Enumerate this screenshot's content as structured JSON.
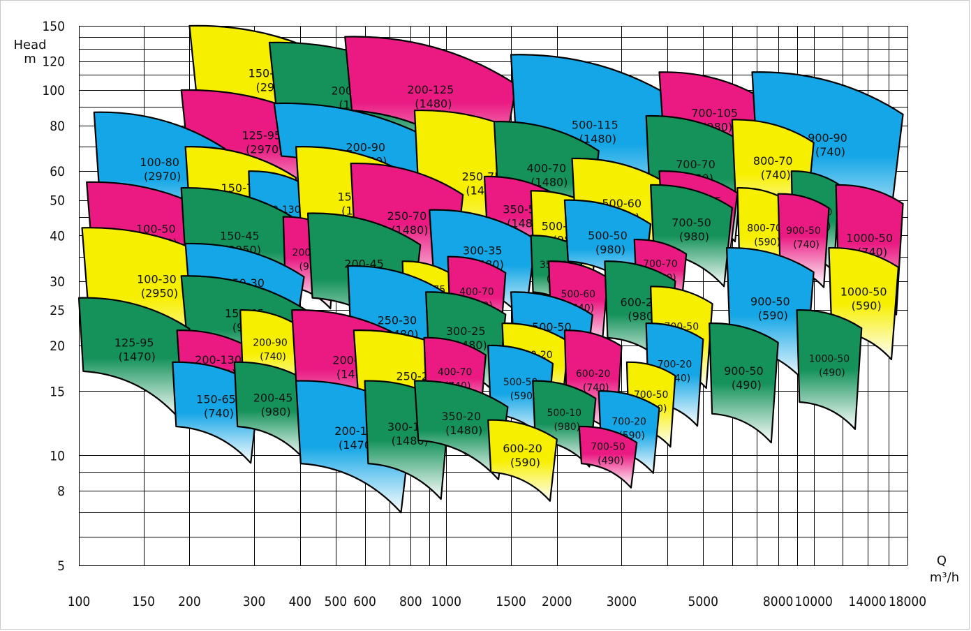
{
  "chart_data": {
    "type": "area",
    "title": "",
    "xlabel_top": "Q",
    "xlabel_unit": "m³/h",
    "ylabel_top": "Head",
    "ylabel_unit": "m",
    "x_scale": "log",
    "y_scale": "log",
    "xlim": [
      100,
      18000
    ],
    "ylim": [
      5,
      150
    ],
    "grid": true,
    "x_ticks": [
      "100",
      "150",
      "200",
      "300",
      "400",
      "500",
      "600",
      "800",
      "1000",
      "1500",
      "2000",
      "3000",
      "5000",
      "8000",
      "10000",
      "14000",
      "18000"
    ],
    "y_ticks": [
      "150",
      "120",
      "100",
      "80",
      "60",
      "50",
      "40",
      "30",
      "25",
      "20",
      "15",
      "10",
      "8",
      "5"
    ],
    "colors": {
      "yellow": "#f7ef00",
      "magenta": "#ea1a82",
      "cyan": "#14a6e6",
      "green": "#14925a"
    },
    "zones": [
      {
        "model": "150-140",
        "speed": "(2970)",
        "color": "yellow",
        "q": [
          200,
          560
        ],
        "h": [
          100,
          150
        ]
      },
      {
        "model": "200-130",
        "speed": "(1480)",
        "color": "green",
        "q": [
          330,
          960
        ],
        "h": [
          90,
          135
        ]
      },
      {
        "model": "200-125",
        "speed": "(1480)",
        "color": "magenta",
        "q": [
          530,
          1550
        ],
        "h": [
          88,
          140
        ]
      },
      {
        "model": "500-115",
        "speed": "(1480)",
        "color": "cyan",
        "q": [
          1500,
          4300
        ],
        "h": [
          63,
          125
        ]
      },
      {
        "model": "700-105",
        "speed": "(980)",
        "color": "magenta",
        "q": [
          3800,
          7600
        ],
        "h": [
          74,
          112
        ]
      },
      {
        "model": "900-90",
        "speed": "(740)",
        "color": "cyan",
        "q": [
          6800,
          17500
        ],
        "h": [
          58,
          112
        ]
      },
      {
        "model": "125-95",
        "speed": "(2970)",
        "color": "magenta",
        "q": [
          190,
          520
        ],
        "h": [
          68,
          100
        ]
      },
      {
        "model": "200-90",
        "speed": "(1480)",
        "color": "cyan",
        "q": [
          340,
          1070
        ],
        "h": [
          66,
          92
        ]
      },
      {
        "model": "250-75",
        "speed": "(1480)",
        "color": "yellow",
        "q": [
          820,
          1900
        ],
        "h": [
          44,
          88
        ]
      },
      {
        "model": "400-70",
        "speed": "(1480)",
        "color": "green",
        "q": [
          1350,
          2600
        ],
        "h": [
          50,
          82
        ]
      },
      {
        "model": "700-70",
        "speed": "(980)",
        "color": "green",
        "q": [
          3500,
          6500
        ],
        "h": [
          50,
          85
        ]
      },
      {
        "model": "800-70",
        "speed": "(740)",
        "color": "yellow",
        "q": [
          6000,
          10000
        ],
        "h": [
          52,
          83
        ]
      },
      {
        "model": "100-80",
        "speed": "(2970)",
        "color": "cyan",
        "q": [
          110,
          250
        ],
        "h": [
          53,
          87
        ]
      },
      {
        "model": "150-70",
        "speed": "(2970)",
        "color": "yellow",
        "q": [
          195,
          390
        ],
        "h": [
          46,
          70
        ]
      },
      {
        "model": "200-130",
        "speed": "(980)",
        "color": "cyan",
        "q": [
          290,
          430
        ],
        "h": [
          38,
          60
        ]
      },
      {
        "model": "150-65",
        "speed": "(1480)",
        "color": "yellow",
        "q": [
          390,
          840
        ],
        "h": [
          42,
          70
        ]
      },
      {
        "model": "250-70",
        "speed": "(1480)",
        "color": "magenta",
        "q": [
          550,
          1110
        ],
        "h": [
          36,
          63
        ]
      },
      {
        "model": "350-50",
        "speed": "(1480)",
        "color": "magenta",
        "q": [
          1270,
          2050
        ],
        "h": [
          40,
          58
        ]
      },
      {
        "model": "500-115",
        "speed": "(980)",
        "color": "yellow",
        "q": [
          1700,
          2600
        ],
        "h": [
          35,
          53
        ]
      },
      {
        "model": "500-60",
        "speed": "(980)",
        "color": "yellow",
        "q": [
          2200,
          4100
        ],
        "h": [
          40,
          65
        ]
      },
      {
        "model": "700-105",
        "speed": "(740)",
        "color": "magenta",
        "q": [
          3800,
          6200
        ],
        "h": [
          43,
          60
        ]
      },
      {
        "model": "900-90",
        "speed": "(590)",
        "color": "green",
        "q": [
          8700,
          11700
        ],
        "h": [
          36,
          60
        ]
      },
      {
        "model": "1000-50",
        "speed": "(740)",
        "color": "magenta",
        "q": [
          11500,
          17500
        ],
        "h": [
          29,
          55
        ]
      },
      {
        "model": "100-50",
        "speed": "(2950)",
        "color": "magenta",
        "q": [
          105,
          250
        ],
        "h": [
          36,
          56
        ]
      },
      {
        "model": "150-45",
        "speed": "(2950)",
        "color": "green",
        "q": [
          190,
          395
        ],
        "h": [
          33,
          54
        ]
      },
      {
        "model": "200-90",
        "speed": "(980)",
        "color": "magenta",
        "q": [
          360,
          500
        ],
        "h": [
          29,
          45
        ]
      },
      {
        "model": "200-45",
        "speed": "(1480)",
        "color": "green",
        "q": [
          420,
          850
        ],
        "h": [
          27,
          46
        ]
      },
      {
        "model": "300-35",
        "speed": "(1480)",
        "color": "cyan",
        "q": [
          900,
          1750
        ],
        "h": [
          31,
          47
        ]
      },
      {
        "model": "350-35",
        "speed": "(980)",
        "color": "green",
        "q": [
          1700,
          2350
        ],
        "h": [
          28,
          40
        ]
      },
      {
        "model": "500-50",
        "speed": "(980)",
        "color": "cyan",
        "q": [
          2100,
          3600
        ],
        "h": [
          34,
          50
        ]
      },
      {
        "model": "700-50",
        "speed": "(980)",
        "color": "green",
        "q": [
          3600,
          6000
        ],
        "h": [
          36,
          55
        ]
      },
      {
        "model": "800-70",
        "speed": "(590)",
        "color": "yellow",
        "q": [
          6200,
          8700
        ],
        "h": [
          33,
          54
        ]
      },
      {
        "model": "900-50",
        "speed": "(740)",
        "color": "magenta",
        "q": [
          8000,
          11000
        ],
        "h": [
          33,
          52
        ]
      },
      {
        "model": "1000-50",
        "speed": "(590)",
        "color": "yellow",
        "q": [
          11000,
          17000
        ],
        "h": [
          22,
          37
        ]
      },
      {
        "model": "100-30",
        "speed": "(2950)",
        "color": "yellow",
        "q": [
          102,
          260
        ],
        "h": [
          26,
          42
        ]
      },
      {
        "model": "150-30",
        "speed": "(2950)",
        "color": "cyan",
        "q": [
          195,
          410
        ],
        "h": [
          26,
          38
        ]
      },
      {
        "model": "150-65",
        "speed": "(980)",
        "color": "green",
        "q": [
          190,
          420
        ],
        "h": [
          22,
          31
        ]
      },
      {
        "model": "250-75",
        "speed": "(980)",
        "color": "yellow",
        "q": [
          760,
          1050
        ],
        "h": [
          24,
          34
        ]
      },
      {
        "model": "400-70",
        "speed": "(980)",
        "color": "magenta",
        "q": [
          1010,
          1450
        ],
        "h": [
          23,
          35
        ]
      },
      {
        "model": "500-60",
        "speed": "(740)",
        "color": "magenta",
        "q": [
          1900,
          2750
        ],
        "h": [
          23,
          34
        ]
      },
      {
        "model": "700-70",
        "speed": "(740)",
        "color": "magenta",
        "q": [
          3250,
          4500
        ],
        "h": [
          29,
          39
        ]
      },
      {
        "model": "900-50",
        "speed": "(590)",
        "color": "cyan",
        "q": [
          5800,
          10000
        ],
        "h": [
          20,
          37
        ]
      },
      {
        "model": "125-95",
        "speed": "(1470)",
        "color": "green",
        "q": [
          100,
          200
        ],
        "h": [
          17,
          27
        ]
      },
      {
        "model": "200-130",
        "speed": "(590)",
        "color": "magenta",
        "q": [
          185,
          310
        ],
        "h": [
          16,
          22
        ]
      },
      {
        "model": "200-90",
        "speed": "(740)",
        "color": "yellow",
        "q": [
          275,
          400
        ],
        "h": [
          17,
          25
        ]
      },
      {
        "model": "250-30",
        "speed": "(1480)",
        "color": "cyan",
        "q": [
          540,
          1000
        ],
        "h": [
          18,
          33
        ]
      },
      {
        "model": "300-25",
        "speed": "(1480)",
        "color": "green",
        "q": [
          880,
          1450
        ],
        "h": [
          18,
          28
        ]
      },
      {
        "model": "500-50",
        "speed": "(740)",
        "color": "cyan",
        "q": [
          1500,
          2500
        ],
        "h": [
          19,
          28
        ]
      },
      {
        "model": "600-20",
        "speed": "(980)",
        "color": "green",
        "q": [
          2700,
          4200
        ],
        "h": [
          21,
          34
        ]
      },
      {
        "model": "700-50",
        "speed": "(740)",
        "color": "yellow",
        "q": [
          3600,
          5300
        ],
        "h": [
          18,
          29
        ]
      },
      {
        "model": "900-50",
        "speed": "(490)",
        "color": "green",
        "q": [
          5200,
          8000
        ],
        "h": [
          13,
          23
        ]
      },
      {
        "model": "1000-50",
        "speed": "(490)",
        "color": "green",
        "q": [
          9000,
          13500
        ],
        "h": [
          14,
          25
        ]
      },
      {
        "model": "150-65",
        "speed": "(740)",
        "color": "cyan",
        "q": [
          180,
          310
        ],
        "h": [
          12,
          18
        ]
      },
      {
        "model": "200-45",
        "speed": "(980)",
        "color": "green",
        "q": [
          265,
          430
        ],
        "h": [
          12,
          18
        ]
      },
      {
        "model": "200-25",
        "speed": "(1480)",
        "color": "magenta",
        "q": [
          380,
          810
        ],
        "h": [
          15,
          25
        ]
      },
      {
        "model": "250-20",
        "speed": "(1480)",
        "color": "yellow",
        "q": [
          560,
          1220
        ],
        "h": [
          14,
          22
        ]
      },
      {
        "model": "400-70",
        "speed": "(740)",
        "color": "magenta",
        "q": [
          870,
          1280
        ],
        "h": [
          14,
          21
        ]
      },
      {
        "model": "400-20",
        "speed": "(980)",
        "color": "yellow",
        "q": [
          1420,
          2150
        ],
        "h": [
          16,
          23
        ]
      },
      {
        "model": "500-50",
        "speed": "(590)",
        "color": "cyan",
        "q": [
          1300,
          1950
        ],
        "h": [
          13,
          20
        ]
      },
      {
        "model": "600-20",
        "speed": "(740)",
        "color": "magenta",
        "q": [
          2100,
          3000
        ],
        "h": [
          13,
          22
        ]
      },
      {
        "model": "700-20",
        "speed": "(740)",
        "color": "cyan",
        "q": [
          3500,
          5000
        ],
        "h": [
          14,
          23
        ]
      },
      {
        "model": "700-50",
        "speed": "(590)",
        "color": "yellow",
        "q": [
          3100,
          4200
        ],
        "h": [
          12,
          18
        ]
      },
      {
        "model": "200-15",
        "speed": "(1470)",
        "color": "cyan",
        "q": [
          390,
          810
        ],
        "h": [
          9.5,
          16
        ]
      },
      {
        "model": "300-10",
        "speed": "(1480)",
        "color": "green",
        "q": [
          600,
          1020
        ],
        "h": [
          9.5,
          16
        ]
      },
      {
        "model": "350-20",
        "speed": "(1480)",
        "color": "green",
        "q": [
          820,
          1470
        ],
        "h": [
          11,
          16
        ]
      },
      {
        "model": "500-10",
        "speed": "(980)",
        "color": "green",
        "q": [
          1720,
          2550
        ],
        "h": [
          11,
          16
        ]
      },
      {
        "model": "600-20",
        "speed": "(590)",
        "color": "yellow",
        "q": [
          1300,
          2000
        ],
        "h": [
          9,
          12.5
        ]
      },
      {
        "model": "700-20",
        "speed": "(590)",
        "color": "cyan",
        "q": [
          2600,
          3800
        ],
        "h": [
          10.5,
          15
        ]
      },
      {
        "model": "700-50",
        "speed": "(490)",
        "color": "magenta",
        "q": [
          2300,
          3300
        ],
        "h": [
          9.5,
          12
        ]
      }
    ]
  }
}
